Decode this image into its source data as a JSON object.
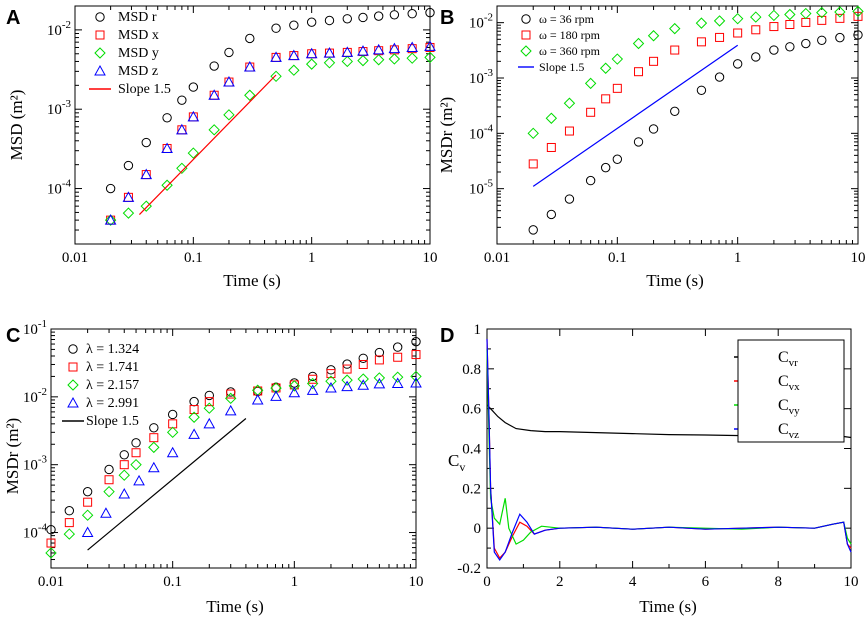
{
  "colors": {
    "black": "#000000",
    "red": "#ff0000",
    "green": "#00dd00",
    "blue": "#0000ff"
  },
  "chart_data": [
    {
      "panel": "A",
      "type": "scatter",
      "xscale": "log",
      "yscale": "log",
      "xlim": [
        0.01,
        10
      ],
      "ylim": [
        2e-05,
        0.02
      ],
      "xlabel": "Time (s)",
      "ylabel": "MSD (m²)",
      "xticks": [
        {
          "v": 0.01,
          "t": "0.01"
        },
        {
          "v": 0.1,
          "t": "0.1"
        },
        {
          "v": 1,
          "t": "1"
        },
        {
          "v": 10,
          "t": "10"
        }
      ],
      "yticks": [
        {
          "v": 0.0001,
          "b": "10",
          "e": "-4"
        },
        {
          "v": 0.001,
          "b": "10",
          "e": "-3"
        },
        {
          "v": 0.01,
          "b": "10",
          "e": "-2"
        }
      ],
      "legend_position": "top-left",
      "series": [
        {
          "name": "MSD r",
          "marker": "circle",
          "color": "black",
          "x": [
            0.02,
            0.04,
            0.06,
            0.08,
            0.1,
            0.15,
            0.2,
            0.3,
            0.5,
            1,
            2,
            5,
            10
          ],
          "y": [
            0.0001,
            0.00038,
            0.00078,
            0.0013,
            0.0019,
            0.0035,
            0.0052,
            0.0078,
            0.0105,
            0.0125,
            0.0138,
            0.0155,
            0.0165
          ]
        },
        {
          "name": "MSD x",
          "marker": "square",
          "color": "red",
          "x": [
            0.02,
            0.04,
            0.06,
            0.08,
            0.1,
            0.15,
            0.2,
            0.3,
            0.5,
            1,
            2,
            5,
            10
          ],
          "y": [
            4e-05,
            0.00015,
            0.00032,
            0.00055,
            0.0008,
            0.0015,
            0.0022,
            0.0034,
            0.0045,
            0.005,
            0.0052,
            0.0056,
            0.006
          ]
        },
        {
          "name": "MSD y",
          "marker": "diamond",
          "color": "green",
          "x": [
            0.02,
            0.04,
            0.06,
            0.08,
            0.1,
            0.15,
            0.2,
            0.3,
            0.5,
            1,
            2,
            5,
            10
          ],
          "y": [
            4e-05,
            6e-05,
            0.00011,
            0.00018,
            0.00028,
            0.00055,
            0.00085,
            0.0015,
            0.0026,
            0.0037,
            0.004,
            0.0043,
            0.0045
          ]
        },
        {
          "name": "MSD z",
          "marker": "triangle",
          "color": "blue",
          "x": [
            0.02,
            0.04,
            0.06,
            0.08,
            0.1,
            0.15,
            0.2,
            0.3,
            0.5,
            1,
            2,
            5,
            10
          ],
          "y": [
            4e-05,
            0.00015,
            0.00032,
            0.00055,
            0.0008,
            0.0015,
            0.0022,
            0.0034,
            0.0045,
            0.005,
            0.0052,
            0.0058,
            0.0062
          ]
        },
        {
          "name": "Slope 1.5",
          "marker": "line",
          "color": "red",
          "x": [
            0.035,
            0.5
          ],
          "y": [
            4.7e-05,
            0.0027
          ]
        }
      ]
    },
    {
      "panel": "B",
      "type": "scatter",
      "xscale": "log",
      "yscale": "log",
      "xlim": [
        0.01,
        10
      ],
      "ylim": [
        1e-06,
        0.02
      ],
      "xlabel": "Time (s)",
      "ylabel": "MSDr (m²)",
      "xticks": [
        {
          "v": 0.01,
          "t": "0.01"
        },
        {
          "v": 0.1,
          "t": "0.1"
        },
        {
          "v": 1,
          "t": "1"
        },
        {
          "v": 10,
          "t": "10"
        }
      ],
      "yticks": [
        {
          "v": 1e-05,
          "b": "10",
          "e": "-5"
        },
        {
          "v": 0.0001,
          "b": "10",
          "e": "-4"
        },
        {
          "v": 0.001,
          "b": "10",
          "e": "-3"
        },
        {
          "v": 0.01,
          "b": "10",
          "e": "-2"
        }
      ],
      "legend_position": "top-left",
      "series": [
        {
          "name": "ω = 36 rpm",
          "marker": "circle",
          "color": "black",
          "x": [
            0.02,
            0.04,
            0.06,
            0.08,
            0.1,
            0.15,
            0.2,
            0.3,
            0.5,
            1,
            2,
            5,
            10
          ],
          "y": [
            1.8e-06,
            6.5e-06,
            1.4e-05,
            2.4e-05,
            3.4e-05,
            7e-05,
            0.00012,
            0.00025,
            0.0006,
            0.0018,
            0.0032,
            0.0048,
            0.006
          ]
        },
        {
          "name": "ω = 180 rpm",
          "marker": "square",
          "color": "red",
          "x": [
            0.02,
            0.04,
            0.06,
            0.08,
            0.1,
            0.15,
            0.2,
            0.3,
            0.5,
            1,
            2,
            5,
            10
          ],
          "y": [
            2.8e-05,
            0.00011,
            0.00024,
            0.00042,
            0.00065,
            0.0013,
            0.002,
            0.0032,
            0.0045,
            0.0065,
            0.0085,
            0.011,
            0.013
          ]
        },
        {
          "name": "ω = 360 rpm",
          "marker": "diamond",
          "color": "green",
          "x": [
            0.02,
            0.04,
            0.06,
            0.08,
            0.1,
            0.15,
            0.2,
            0.3,
            0.5,
            1,
            2,
            5,
            10
          ],
          "y": [
            0.0001,
            0.00035,
            0.0008,
            0.0015,
            0.0022,
            0.0042,
            0.0058,
            0.0078,
            0.0098,
            0.0118,
            0.0135,
            0.0152,
            0.016
          ]
        },
        {
          "name": "Slope 1.5",
          "marker": "line",
          "color": "blue",
          "x": [
            0.02,
            1
          ],
          "y": [
            1.1e-05,
            0.0039
          ]
        }
      ]
    },
    {
      "panel": "C",
      "type": "scatter",
      "xscale": "log",
      "yscale": "log",
      "xlim": [
        0.01,
        10
      ],
      "ylim": [
        3e-05,
        0.1
      ],
      "xlabel": "Time (s)",
      "ylabel": "MSDr (m²)",
      "xticks": [
        {
          "v": 0.01,
          "t": "0.01"
        },
        {
          "v": 0.1,
          "t": "0.1"
        },
        {
          "v": 1,
          "t": "1"
        },
        {
          "v": 10,
          "t": "10"
        }
      ],
      "yticks": [
        {
          "v": 0.0001,
          "b": "10",
          "e": "-4"
        },
        {
          "v": 0.001,
          "b": "10",
          "e": "-3"
        },
        {
          "v": 0.01,
          "b": "10",
          "e": "-2"
        },
        {
          "v": 0.1,
          "b": "10",
          "e": "-1"
        }
      ],
      "legend_position": "top-left",
      "series": [
        {
          "name": "λ = 1.324",
          "marker": "circle",
          "color": "black",
          "x": [
            0.01,
            0.02,
            0.03,
            0.04,
            0.05,
            0.07,
            0.1,
            0.15,
            0.2,
            0.3,
            0.5,
            1,
            2,
            5,
            10
          ],
          "y": [
            0.00011,
            0.0004,
            0.00085,
            0.0014,
            0.0021,
            0.0035,
            0.0055,
            0.0085,
            0.0105,
            0.0118,
            0.012,
            0.016,
            0.025,
            0.045,
            0.065
          ]
        },
        {
          "name": "λ = 1.741",
          "marker": "square",
          "color": "red",
          "x": [
            0.01,
            0.02,
            0.03,
            0.04,
            0.05,
            0.07,
            0.1,
            0.15,
            0.2,
            0.3,
            0.5,
            1,
            2,
            5,
            10
          ],
          "y": [
            7e-05,
            0.00028,
            0.0006,
            0.001,
            0.0015,
            0.0025,
            0.004,
            0.0065,
            0.0085,
            0.011,
            0.0122,
            0.015,
            0.022,
            0.035,
            0.042
          ]
        },
        {
          "name": "λ = 2.157",
          "marker": "diamond",
          "color": "green",
          "x": [
            0.01,
            0.02,
            0.03,
            0.04,
            0.05,
            0.07,
            0.1,
            0.15,
            0.2,
            0.3,
            0.5,
            1,
            2,
            5,
            10
          ],
          "y": [
            5e-05,
            0.00018,
            0.0004,
            0.0007,
            0.001,
            0.0018,
            0.003,
            0.005,
            0.0068,
            0.0095,
            0.0125,
            0.0145,
            0.017,
            0.019,
            0.02
          ]
        },
        {
          "name": "λ = 2.991",
          "marker": "triangle",
          "color": "blue",
          "x": [
            0.02,
            0.04,
            0.07,
            0.1,
            0.15,
            0.2,
            0.3,
            0.5,
            1,
            2,
            5,
            10
          ],
          "y": [
            0.0001,
            0.00037,
            0.0009,
            0.0015,
            0.0028,
            0.004,
            0.0062,
            0.009,
            0.0115,
            0.0135,
            0.0155,
            0.016
          ]
        },
        {
          "name": "Slope 1.5",
          "marker": "line",
          "color": "black",
          "x": [
            0.02,
            0.4
          ],
          "y": [
            5.5e-05,
            0.0048
          ]
        }
      ]
    },
    {
      "panel": "D",
      "type": "line",
      "xscale": "linear",
      "yscale": "linear",
      "xlim": [
        0,
        10
      ],
      "ylim": [
        -0.2,
        1
      ],
      "xlabel": "Time (s)",
      "ylabel": "C",
      "ylabel_sub": "v",
      "xticks": [
        {
          "v": 0,
          "t": "0"
        },
        {
          "v": 2,
          "t": "2"
        },
        {
          "v": 4,
          "t": "4"
        },
        {
          "v": 6,
          "t": "6"
        },
        {
          "v": 8,
          "t": "8"
        },
        {
          "v": 10,
          "t": "10"
        }
      ],
      "yticks": [
        {
          "v": -0.2,
          "t": "-0.2"
        },
        {
          "v": 0,
          "t": "0"
        },
        {
          "v": 0.2,
          "t": "0.2"
        },
        {
          "v": 0.4,
          "t": "0.4"
        },
        {
          "v": 0.6,
          "t": "0.6"
        },
        {
          "v": 0.8,
          "t": "0.8"
        },
        {
          "v": 1,
          "t": "1"
        }
      ],
      "legend_position": "top-right",
      "series": [
        {
          "name": "C",
          "sub": "vr",
          "color": "black",
          "x": [
            0,
            0.1,
            0.3,
            0.5,
            0.8,
            1.2,
            1.6,
            2,
            3,
            4,
            5,
            6,
            7,
            8,
            9,
            9.5,
            9.8,
            10
          ],
          "y": [
            0.62,
            0.6,
            0.56,
            0.53,
            0.5,
            0.49,
            0.485,
            0.485,
            0.48,
            0.475,
            0.47,
            0.468,
            0.465,
            0.462,
            0.46,
            0.458,
            0.46,
            0.455
          ]
        },
        {
          "name": "C",
          "sub": "vx",
          "color": "red",
          "x": [
            0,
            0.05,
            0.1,
            0.2,
            0.35,
            0.5,
            0.7,
            0.9,
            1.1,
            1.3,
            1.6,
            2,
            3,
            4,
            5,
            6,
            7,
            8,
            9,
            9.5,
            9.8,
            9.9,
            10
          ],
          "y": [
            0.95,
            0.6,
            0.2,
            -0.1,
            -0.15,
            -0.12,
            -0.04,
            0.03,
            0.01,
            -0.03,
            -0.01,
            0.0,
            0.005,
            -0.005,
            0.005,
            -0.005,
            0.0,
            0.005,
            0.0,
            0.02,
            0.03,
            -0.08,
            -0.1
          ]
        },
        {
          "name": "C",
          "sub": "vy",
          "color": "green",
          "x": [
            0,
            0.05,
            0.1,
            0.2,
            0.35,
            0.5,
            0.6,
            0.8,
            1.0,
            1.2,
            1.5,
            2,
            3,
            4,
            5,
            6,
            7,
            8,
            9,
            9.5,
            9.8,
            9.9,
            10
          ],
          "y": [
            0.9,
            0.5,
            0.15,
            0.05,
            0.02,
            0.15,
            0.0,
            -0.08,
            -0.06,
            -0.02,
            0.01,
            0.0,
            0.005,
            -0.005,
            0.005,
            0.0,
            -0.005,
            0.005,
            0.0,
            0.02,
            0.03,
            -0.05,
            -0.08
          ]
        },
        {
          "name": "C",
          "sub": "vz",
          "color": "blue",
          "x": [
            0,
            0.05,
            0.1,
            0.2,
            0.35,
            0.5,
            0.7,
            0.9,
            1.1,
            1.3,
            1.6,
            2,
            3,
            4,
            5,
            6,
            7,
            8,
            9,
            9.5,
            9.8,
            9.9,
            10
          ],
          "y": [
            0.95,
            0.6,
            0.2,
            -0.12,
            -0.16,
            -0.12,
            -0.02,
            0.07,
            0.03,
            -0.03,
            -0.01,
            0.0,
            0.005,
            -0.005,
            0.005,
            -0.005,
            0.0,
            0.005,
            0.0,
            0.02,
            0.03,
            -0.08,
            -0.12
          ]
        }
      ]
    }
  ]
}
